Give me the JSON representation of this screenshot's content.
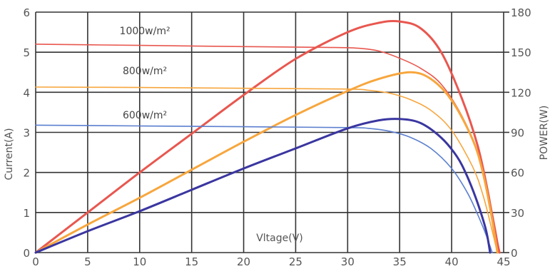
{
  "chart_data": {
    "type": "line",
    "title": "",
    "xlabel": "Vltage(V)",
    "ylabel_left": "Current(A)",
    "ylabel_right": "POWER(W)",
    "x_ticks": [
      "0",
      "5",
      "10",
      "15",
      "20",
      "25",
      "30",
      "35",
      "40",
      "45"
    ],
    "y_left_ticks": [
      "0",
      "1",
      "2",
      "3",
      "4",
      "5",
      "6"
    ],
    "y_right_ticks": [
      "0",
      "30",
      "60",
      "90",
      "120",
      "150",
      "180"
    ],
    "xlim": [
      0,
      45
    ],
    "ylim_left": [
      0,
      6
    ],
    "ylim_right": [
      0,
      180
    ],
    "grid": true,
    "annotations": [
      {
        "text": "1000w/m²",
        "x": 10.5,
        "y": 5.45
      },
      {
        "text": "800w/m²",
        "x": 10.5,
        "y": 4.45
      },
      {
        "text": "600w/m²",
        "x": 10.5,
        "y": 3.35
      }
    ],
    "series": [
      {
        "kind": "current",
        "irradiance": "1000w/m²",
        "color": "#e8574f",
        "axis": "left",
        "x": [
          0,
          10,
          20,
          28,
          31,
          33,
          35,
          37,
          39,
          41,
          42.5,
          43.5,
          44.2,
          44.6
        ],
        "y": [
          5.2,
          5.17,
          5.14,
          5.12,
          5.1,
          5.03,
          4.85,
          4.6,
          4.2,
          3.4,
          2.5,
          1.5,
          0.6,
          0
        ]
      },
      {
        "kind": "power",
        "irradiance": "1000w/m²",
        "color": "#e8574f",
        "axis": "right",
        "x": [
          0,
          5,
          10,
          15,
          20,
          25,
          30,
          33,
          35,
          37,
          39,
          41,
          42.5,
          43.5,
          44,
          44.6
        ],
        "y": [
          0,
          30,
          60,
          89,
          118,
          145,
          165,
          172,
          173,
          168,
          150,
          115,
          80,
          45,
          22,
          0
        ]
      },
      {
        "kind": "current",
        "irradiance": "800w/m²",
        "color": "#f7a63d",
        "axis": "left",
        "x": [
          0,
          10,
          20,
          30,
          32,
          34,
          36,
          38,
          40,
          42,
          43,
          43.8,
          44.4
        ],
        "y": [
          4.13,
          4.12,
          4.1,
          4.08,
          4.05,
          3.98,
          3.82,
          3.55,
          3.05,
          2.15,
          1.45,
          0.65,
          0
        ]
      },
      {
        "kind": "power",
        "irradiance": "800w/m²",
        "color": "#f7a63d",
        "axis": "right",
        "x": [
          0,
          5,
          10,
          15,
          20,
          25,
          30,
          33,
          36,
          38,
          40,
          42,
          43,
          43.8,
          44.4
        ],
        "y": [
          0,
          21,
          41,
          62,
          83,
          103,
          121,
          130,
          135,
          130,
          114,
          85,
          60,
          29,
          0
        ]
      },
      {
        "kind": "current",
        "irradiance": "600w/m²",
        "color": "#5b7fcf",
        "axis": "left",
        "x": [
          0,
          10,
          20,
          30,
          32,
          34,
          36,
          38,
          40,
          41.5,
          42.5,
          43.3,
          43.9
        ],
        "y": [
          3.18,
          3.16,
          3.14,
          3.12,
          3.1,
          3.03,
          2.88,
          2.6,
          2.1,
          1.5,
          0.95,
          0.45,
          0
        ]
      },
      {
        "kind": "power",
        "irradiance": "600w/m²",
        "color": "#3a36a0",
        "axis": "right",
        "x": [
          0,
          5,
          10,
          15,
          20,
          25,
          30,
          33,
          35,
          37,
          39,
          40.5,
          41.5,
          42.5,
          43.3,
          43.7
        ],
        "y": [
          0,
          16,
          31,
          47,
          63,
          78,
          93,
          99,
          100,
          97,
          86,
          72,
          57,
          37,
          17,
          0
        ]
      }
    ]
  }
}
